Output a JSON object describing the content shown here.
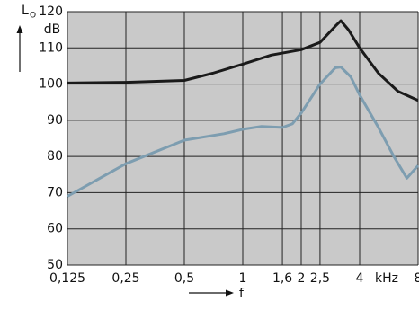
{
  "chart_data": {
    "type": "line",
    "y_label": "L",
    "y_label_sub": "O",
    "y_unit": "dB",
    "x_label": "f",
    "x_unit": "kHz",
    "log_x": true,
    "grid": true,
    "background": "#c9c9c9",
    "xlim": [
      0.125,
      8
    ],
    "ylim": [
      50,
      120
    ],
    "xticks": [
      {
        "value": 0.125,
        "label": "0,125"
      },
      {
        "value": 0.25,
        "label": "0,25"
      },
      {
        "value": 0.5,
        "label": "0,5"
      },
      1,
      {
        "value": 1.6,
        "label": "1,6"
      },
      2,
      {
        "value": 2.5,
        "label": "2,5"
      },
      4,
      8
    ],
    "yticks": [
      50,
      60,
      70,
      80,
      90,
      100,
      110,
      120
    ],
    "series": [
      {
        "color": "#1a1a1a",
        "x": [
          0.125,
          0.25,
          0.5,
          0.7,
          1,
          1.4,
          2,
          2.5,
          3,
          3.2,
          3.5,
          4,
          5,
          6.3,
          8
        ],
        "values": [
          100.3,
          100.5,
          101,
          103,
          105.5,
          108,
          109.5,
          111.5,
          116,
          117.5,
          115,
          110,
          103,
          98,
          95.5
        ]
      },
      {
        "color": "#7d9db0",
        "x": [
          0.125,
          0.25,
          0.5,
          0.8,
          1,
          1.25,
          1.6,
          1.8,
          2,
          2.5,
          3,
          3.2,
          3.6,
          4,
          5,
          6,
          7,
          8
        ],
        "values": [
          69,
          78,
          84.5,
          86.3,
          87.5,
          88.3,
          88,
          89,
          92,
          100,
          104.5,
          104.7,
          102,
          97,
          88,
          80,
          74,
          77.5
        ]
      }
    ]
  }
}
